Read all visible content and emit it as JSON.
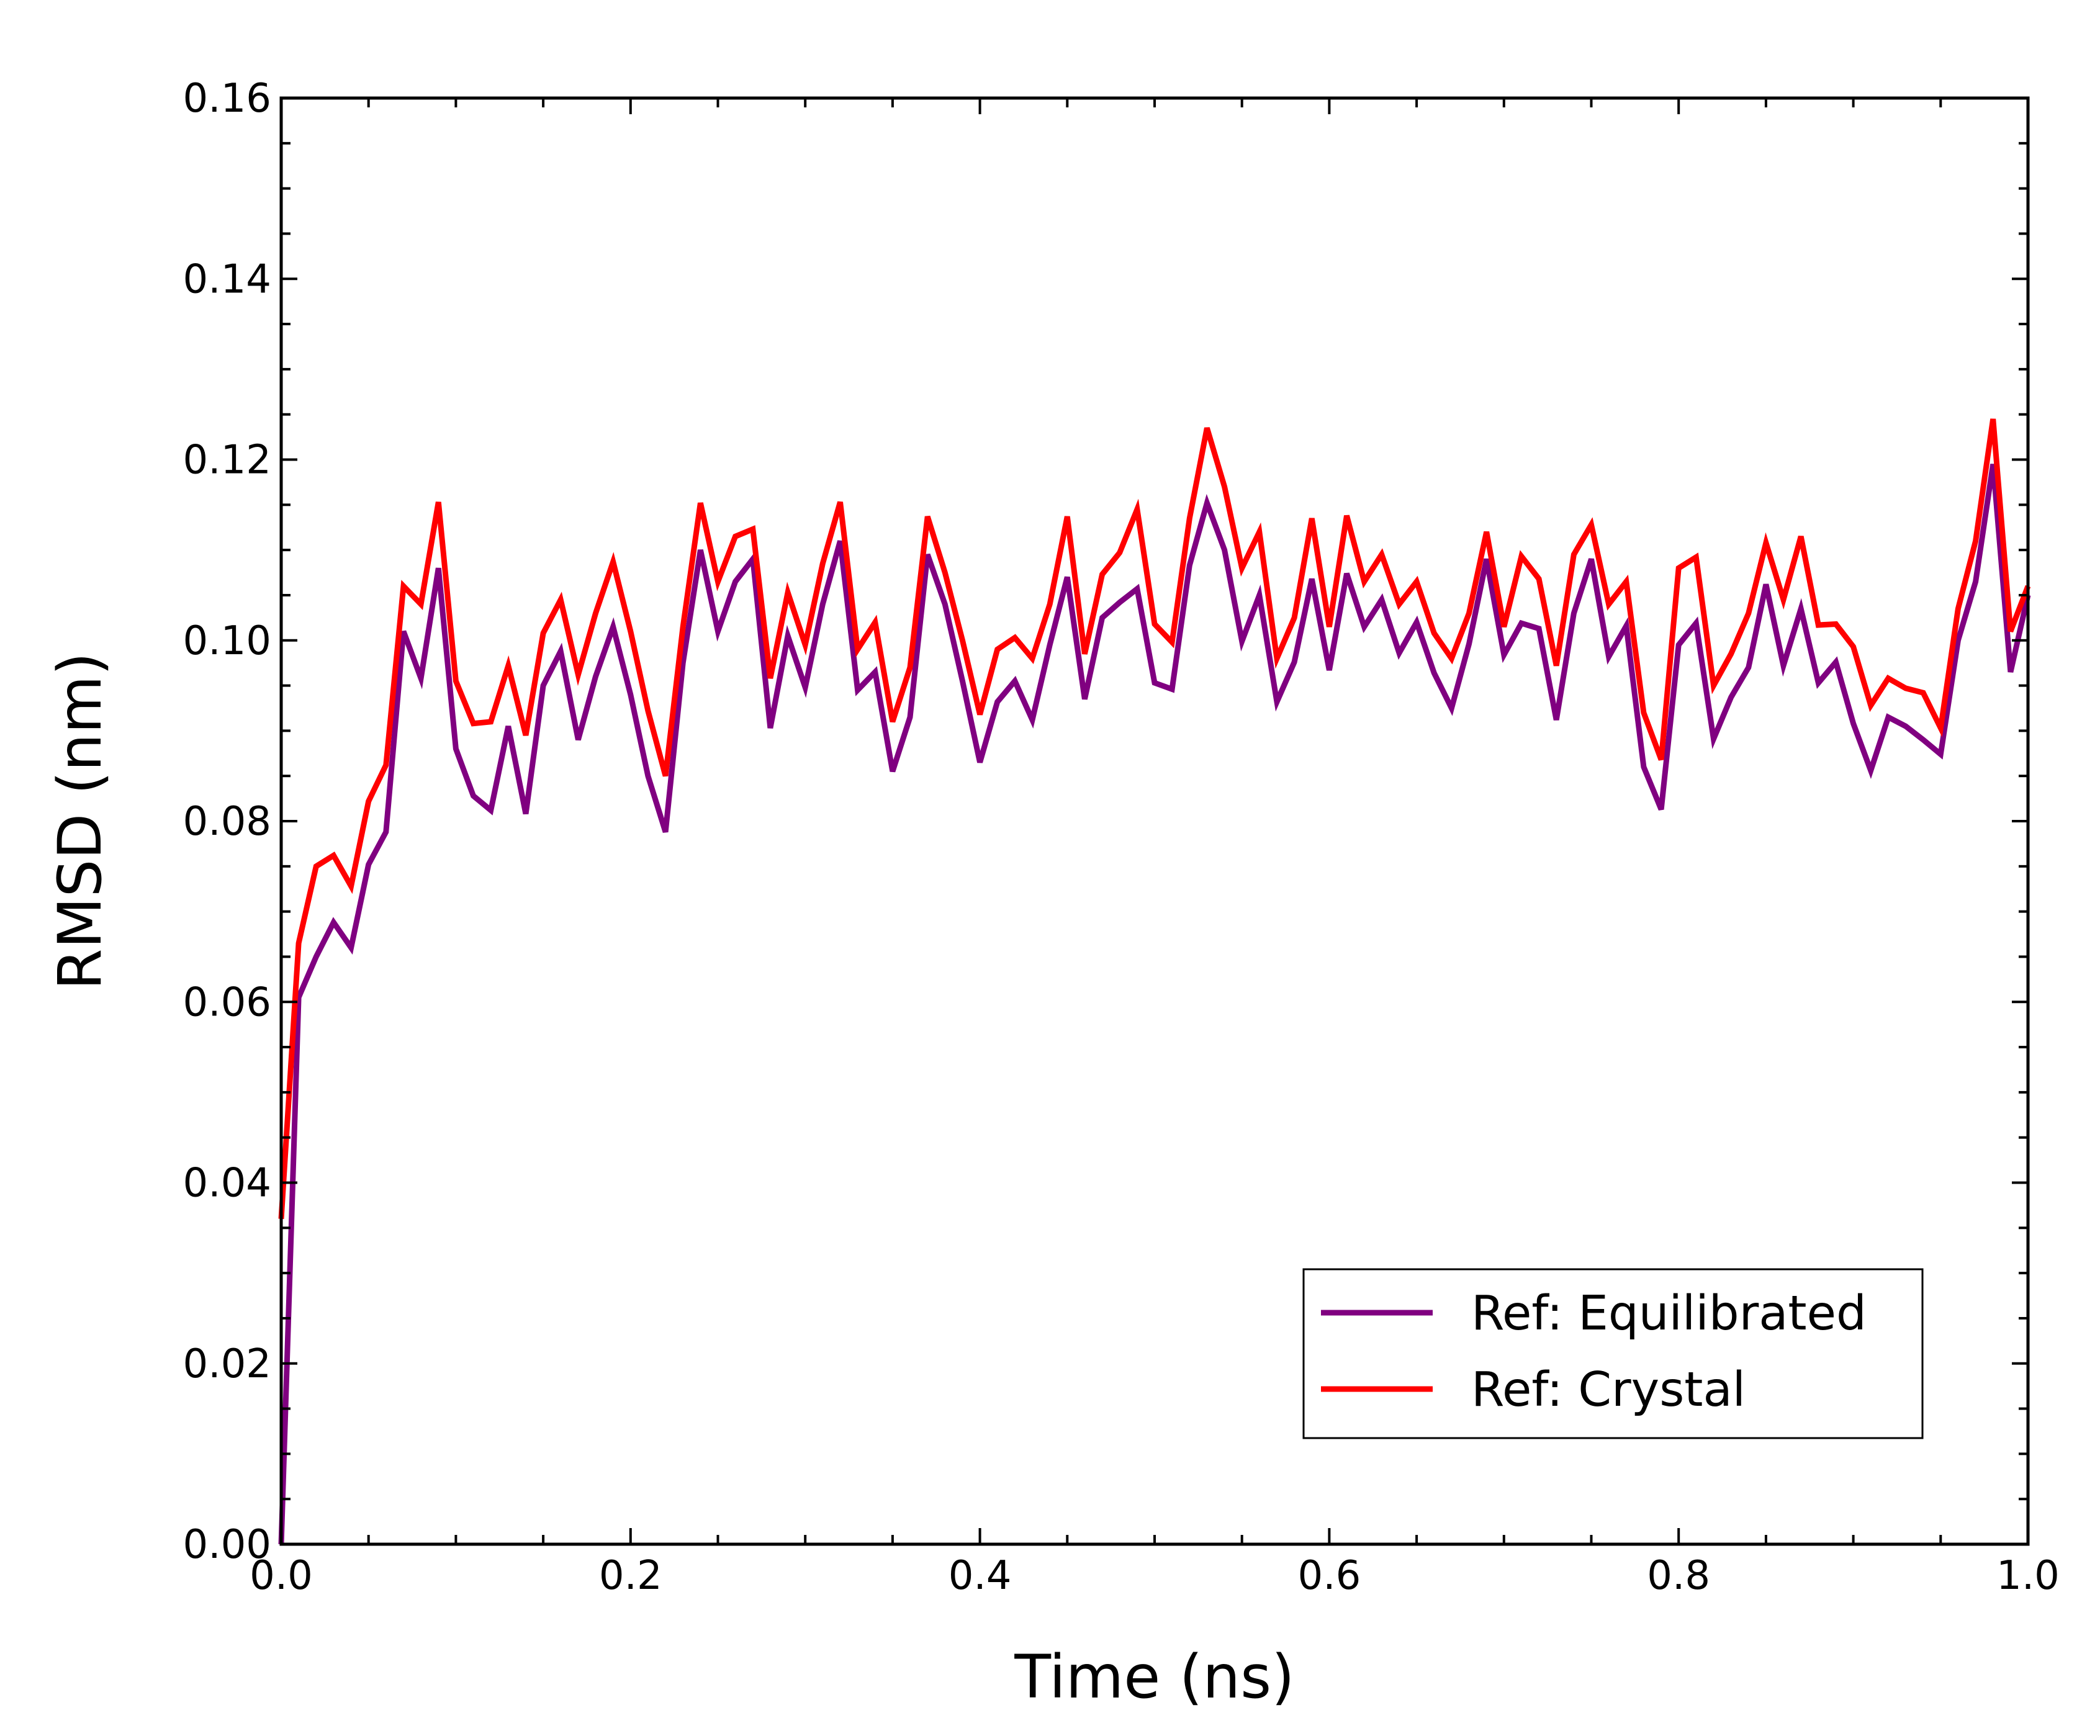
{
  "chart_data": {
    "type": "line",
    "title": "",
    "xlabel": "Time (ns)",
    "ylabel": "RMSD (nm)",
    "xlim": [
      0.0,
      1.0
    ],
    "ylim": [
      0.0,
      0.16
    ],
    "xticks": [
      "0.0",
      "0.2",
      "0.4",
      "0.6",
      "0.8",
      "1.0"
    ],
    "yticks": [
      "0.00",
      "0.02",
      "0.04",
      "0.06",
      "0.08",
      "0.10",
      "0.12",
      "0.14",
      "0.16"
    ],
    "grid": false,
    "legend_position": "lower-right",
    "x": [
      0.0,
      0.01,
      0.02,
      0.03,
      0.04,
      0.05,
      0.06,
      0.07,
      0.08,
      0.09,
      0.1,
      0.11,
      0.12,
      0.13,
      0.14,
      0.15,
      0.16,
      0.17,
      0.18,
      0.19,
      0.2,
      0.21,
      0.22,
      0.23,
      0.24,
      0.25,
      0.26,
      0.27,
      0.28,
      0.29,
      0.3,
      0.31,
      0.32,
      0.33,
      0.34,
      0.35,
      0.36,
      0.37,
      0.38,
      0.39,
      0.4,
      0.41,
      0.42,
      0.43,
      0.44,
      0.45,
      0.46,
      0.47,
      0.48,
      0.49,
      0.5,
      0.51,
      0.52,
      0.53,
      0.54,
      0.55,
      0.56,
      0.57,
      0.58,
      0.59,
      0.6,
      0.61,
      0.62,
      0.63,
      0.64,
      0.65,
      0.66,
      0.67,
      0.68,
      0.69,
      0.7,
      0.71,
      0.72,
      0.73,
      0.74,
      0.75,
      0.76,
      0.77,
      0.78,
      0.79,
      0.8,
      0.81,
      0.82,
      0.83,
      0.84,
      0.85,
      0.86,
      0.87,
      0.88,
      0.89,
      0.9,
      0.91,
      0.92,
      0.93,
      0.94,
      0.95,
      0.96,
      0.97,
      0.98,
      0.99,
      1.0
    ],
    "series": [
      {
        "name": "Ref: Equilibrated",
        "color": "#800080",
        "values": [
          0.0,
          0.0605,
          0.065,
          0.0688,
          0.066,
          0.0752,
          0.0788,
          0.101,
          0.0958,
          0.108,
          0.088,
          0.0828,
          0.0812,
          0.0905,
          0.0808,
          0.095,
          0.0988,
          0.089,
          0.096,
          0.1015,
          0.094,
          0.085,
          0.0788,
          0.0975,
          0.11,
          0.101,
          0.1065,
          0.109,
          0.0903,
          0.1005,
          0.0948,
          0.104,
          0.111,
          0.0945,
          0.0965,
          0.0855,
          0.0915,
          0.1095,
          0.104,
          0.0955,
          0.0865,
          0.0932,
          0.0955,
          0.0912,
          0.0995,
          0.107,
          0.0935,
          0.1025,
          0.1042,
          0.1057,
          0.0953,
          0.0946,
          0.1083,
          0.1152,
          0.11,
          0.0999,
          0.105,
          0.0932,
          0.0976,
          0.1068,
          0.0967,
          0.1074,
          0.1015,
          0.1045,
          0.0986,
          0.102,
          0.0964,
          0.0925,
          0.0996,
          0.109,
          0.0984,
          0.1019,
          0.1013,
          0.0912,
          0.103,
          0.109,
          0.0982,
          0.1016,
          0.086,
          0.0813,
          0.0995,
          0.1019,
          0.0891,
          0.0937,
          0.097,
          0.1062,
          0.0972,
          0.1035,
          0.0953,
          0.0976,
          0.0908,
          0.0856,
          0.0915,
          0.0905,
          0.089,
          0.0874,
          0.1,
          0.1065,
          0.1195,
          0.0965,
          0.105
        ]
      },
      {
        "name": "Ref: Crystal",
        "color": "#ff0000",
        "values": [
          0.036,
          0.0665,
          0.075,
          0.0762,
          0.0728,
          0.0822,
          0.0862,
          0.106,
          0.104,
          0.1153,
          0.0955,
          0.0908,
          0.091,
          0.0972,
          0.0895,
          0.1008,
          0.1045,
          0.0962,
          0.103,
          0.1087,
          0.101,
          0.0922,
          0.085,
          0.1015,
          0.1152,
          0.1065,
          0.1115,
          0.1123,
          0.0958,
          0.1053,
          0.0995,
          0.1085,
          0.1153,
          0.099,
          0.102,
          0.091,
          0.097,
          0.1137,
          0.1075,
          0.1,
          0.0918,
          0.099,
          0.1003,
          0.098,
          0.104,
          0.1137,
          0.0985,
          0.1073,
          0.1097,
          0.1145,
          0.1018,
          0.0998,
          0.1135,
          0.1235,
          0.117,
          0.108,
          0.112,
          0.098,
          0.1025,
          0.1135,
          0.1015,
          0.1138,
          0.1065,
          0.1095,
          0.104,
          0.1065,
          0.1008,
          0.098,
          0.103,
          0.112,
          0.1015,
          0.1093,
          0.1068,
          0.0972,
          0.1095,
          0.1128,
          0.104,
          0.1065,
          0.092,
          0.0868,
          0.108,
          0.1092,
          0.095,
          0.0985,
          0.103,
          0.1108,
          0.1045,
          0.1115,
          0.1017,
          0.1018,
          0.0993,
          0.0928,
          0.0958,
          0.0947,
          0.0942,
          0.0903,
          0.1035,
          0.111,
          0.1245,
          0.101,
          0.106
        ]
      }
    ]
  }
}
